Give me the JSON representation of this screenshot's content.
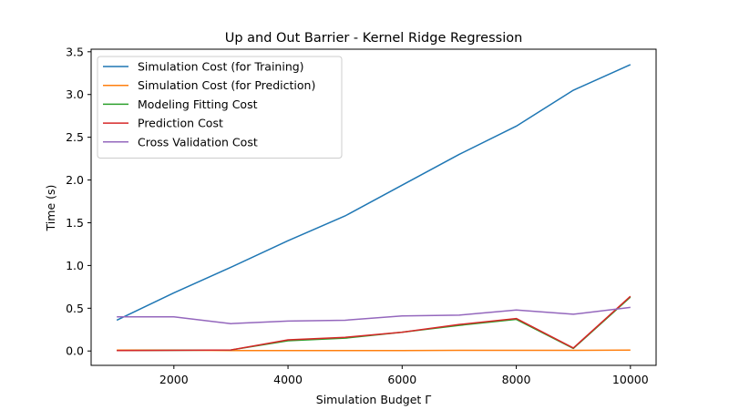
{
  "chart_data": {
    "type": "line",
    "title": "Up and Out Barrier - Kernel Ridge Regression",
    "xlabel": "Simulation Budget Γ",
    "ylabel": "Time (s)",
    "xlim": [
      550,
      10450
    ],
    "ylim": [
      -0.168,
      3.53
    ],
    "xticks": [
      2000,
      4000,
      6000,
      8000,
      10000
    ],
    "xtick_labels": [
      "2000",
      "4000",
      "6000",
      "8000",
      "10000"
    ],
    "yticks": [
      0.0,
      0.5,
      1.0,
      1.5,
      2.0,
      2.5,
      3.0,
      3.5
    ],
    "ytick_labels": [
      "0.0",
      "0.5",
      "1.0",
      "1.5",
      "2.0",
      "2.5",
      "3.0",
      "3.5"
    ],
    "grid": false,
    "legend_position": "top-left",
    "x": [
      1000,
      2000,
      3000,
      4000,
      5000,
      6000,
      7000,
      8000,
      9000,
      10000
    ],
    "series": [
      {
        "name": "Simulation Cost (for Training)",
        "color": "#1f77b4",
        "values": [
          0.36,
          0.68,
          0.98,
          1.29,
          1.58,
          1.94,
          2.3,
          2.63,
          3.05,
          3.35
        ]
      },
      {
        "name": "Simulation Cost (for Prediction)",
        "color": "#ff7f0e",
        "values": [
          0.01,
          0.01,
          0.005,
          0.005,
          0.005,
          0.005,
          0.008,
          0.008,
          0.008,
          0.01
        ]
      },
      {
        "name": "Modeling Fitting Cost",
        "color": "#2ca02c",
        "values": [
          0.005,
          0.008,
          0.012,
          0.12,
          0.15,
          0.22,
          0.3,
          0.37,
          0.03,
          0.63
        ]
      },
      {
        "name": "Prediction Cost",
        "color": "#d62728",
        "values": [
          0.005,
          0.008,
          0.012,
          0.13,
          0.16,
          0.22,
          0.31,
          0.38,
          0.035,
          0.64
        ]
      },
      {
        "name": "Cross Validation Cost",
        "color": "#9467bd",
        "values": [
          0.4,
          0.4,
          0.32,
          0.35,
          0.36,
          0.41,
          0.42,
          0.48,
          0.43,
          0.51
        ]
      }
    ]
  }
}
